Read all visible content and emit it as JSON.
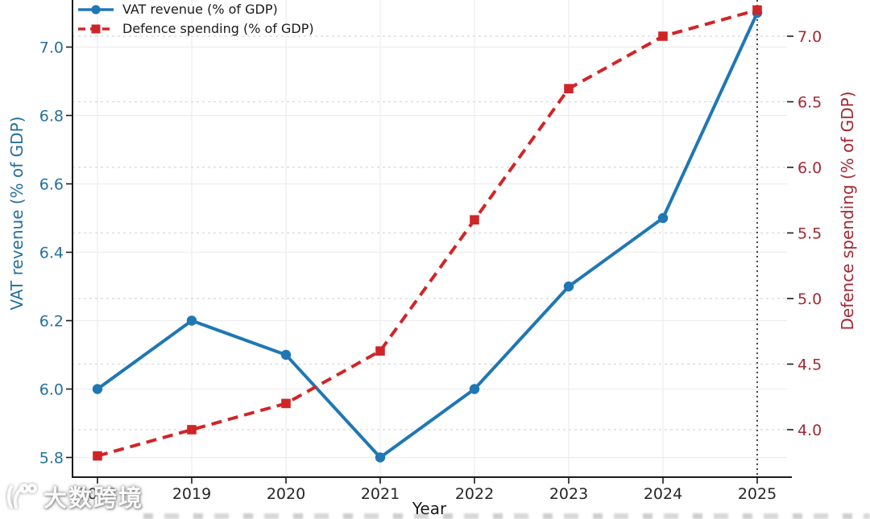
{
  "watermark": {
    "text": "大数跨境"
  },
  "chart_data": {
    "type": "line",
    "x": [
      2018,
      2019,
      2020,
      2021,
      2022,
      2023,
      2024,
      2025
    ],
    "xlabel": "Year",
    "series": [
      {
        "name": "VAT revenue (% of GDP)",
        "axis": "left",
        "color": "#1f77b4",
        "line_style": "solid",
        "marker": "circle",
        "values": [
          6.0,
          6.2,
          6.1,
          5.8,
          6.0,
          6.3,
          6.5,
          7.1
        ]
      },
      {
        "name": "Defence spending (% of GDP)",
        "axis": "right",
        "color": "#d02527",
        "line_style": "dashed",
        "marker": "square",
        "values": [
          3.8,
          4.0,
          4.2,
          4.6,
          5.6,
          6.6,
          7.0,
          7.2
        ]
      }
    ],
    "left_axis": {
      "label": "VAT revenue (% of GDP)",
      "color": "#26709e",
      "ticks": [
        5.8,
        6.0,
        6.2,
        6.4,
        6.6,
        6.8,
        7.0
      ],
      "range": [
        5.74,
        7.14
      ]
    },
    "right_axis": {
      "label": "Defence spending (% of GDP)",
      "color": "#a52834",
      "ticks": [
        4.0,
        4.5,
        5.0,
        5.5,
        6.0,
        6.5,
        7.0
      ],
      "range": [
        3.64,
        7.28
      ]
    },
    "x_tick_labels": [
      "2018",
      "2019",
      "2020",
      "2021",
      "2022",
      "2023",
      "2024",
      "2025"
    ],
    "annotations": {
      "vline_x": 2025,
      "vline_style": "dotted",
      "vline_color": "#2a2a2a"
    },
    "legend": {
      "position": "upper-left",
      "frame": false
    },
    "grid": {
      "vertical": true,
      "horizontal_left_style": "solid",
      "horizontal_right_style": "dashed",
      "solid_color": "#ededed",
      "dashed_color": "#d8d8d8"
    }
  }
}
